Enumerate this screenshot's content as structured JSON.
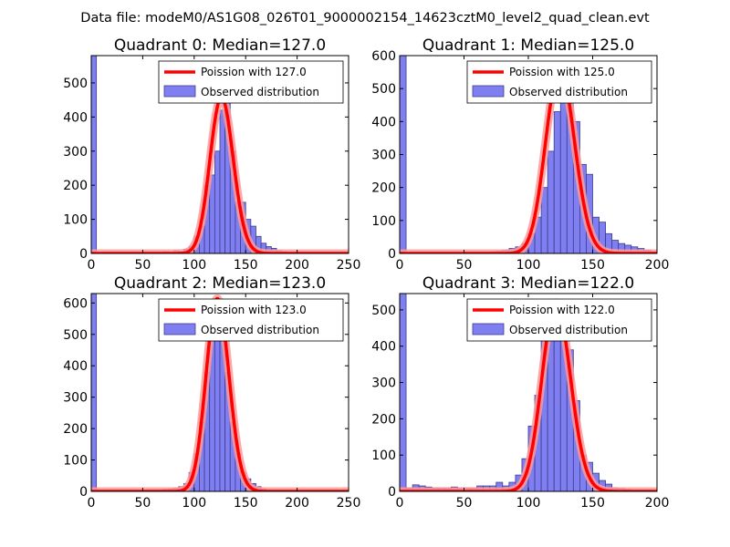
{
  "suptitle": "Data file: modeM0/AS1G08_026T01_9000002154_14623cztM0_level2_quad_clean.evt",
  "colors": {
    "bar_fill": "#7f7ff2",
    "bar_edge": "#3c3c8c",
    "poisson_line": "#ff0000",
    "poisson_halo": "#ff9a9a"
  },
  "chart_data": [
    {
      "type": "bar",
      "title": "Quadrant 0: Median=127.0",
      "median": 127.0,
      "bin_width": 5,
      "xlim": [
        0,
        250
      ],
      "ylim": [
        0,
        580
      ],
      "xticks": [
        "0",
        "50",
        "100",
        "150",
        "200",
        "250"
      ],
      "yticks": [
        "0",
        "100",
        "200",
        "300",
        "400",
        "500"
      ],
      "legend": [
        "Poission with 127.0",
        "Observed distribution"
      ],
      "legend_position": "top-right",
      "bins": [
        {
          "x": 0,
          "y": 580
        },
        {
          "x": 70,
          "y": 5
        },
        {
          "x": 75,
          "y": 3
        },
        {
          "x": 80,
          "y": 8
        },
        {
          "x": 85,
          "y": 6
        },
        {
          "x": 90,
          "y": 12
        },
        {
          "x": 95,
          "y": 20
        },
        {
          "x": 100,
          "y": 50
        },
        {
          "x": 105,
          "y": 80
        },
        {
          "x": 110,
          "y": 200
        },
        {
          "x": 115,
          "y": 230
        },
        {
          "x": 120,
          "y": 300
        },
        {
          "x": 125,
          "y": 420
        },
        {
          "x": 130,
          "y": 440
        },
        {
          "x": 135,
          "y": 300
        },
        {
          "x": 140,
          "y": 150
        },
        {
          "x": 145,
          "y": 150
        },
        {
          "x": 150,
          "y": 100
        },
        {
          "x": 155,
          "y": 80
        },
        {
          "x": 160,
          "y": 50
        },
        {
          "x": 165,
          "y": 30
        },
        {
          "x": 170,
          "y": 20
        },
        {
          "x": 175,
          "y": 15
        },
        {
          "x": 180,
          "y": 8
        },
        {
          "x": 185,
          "y": 5
        },
        {
          "x": 190,
          "y": 3
        }
      ]
    },
    {
      "type": "bar",
      "title": "Quadrant 1: Median=125.0",
      "median": 125.0,
      "bin_width": 5,
      "xlim": [
        0,
        200
      ],
      "ylim": [
        0,
        600
      ],
      "xticks": [
        "0",
        "50",
        "100",
        "150",
        "200"
      ],
      "yticks": [
        "0",
        "100",
        "200",
        "300",
        "400",
        "500",
        "600"
      ],
      "legend": [
        "Poission with 125.0",
        "Observed distribution"
      ],
      "legend_position": "top-right",
      "bins": [
        {
          "x": 0,
          "y": 600
        },
        {
          "x": 70,
          "y": 5
        },
        {
          "x": 75,
          "y": 7
        },
        {
          "x": 80,
          "y": 10
        },
        {
          "x": 85,
          "y": 15
        },
        {
          "x": 90,
          "y": 20
        },
        {
          "x": 95,
          "y": 30
        },
        {
          "x": 100,
          "y": 60
        },
        {
          "x": 105,
          "y": 110
        },
        {
          "x": 110,
          "y": 200
        },
        {
          "x": 115,
          "y": 310
        },
        {
          "x": 120,
          "y": 430
        },
        {
          "x": 125,
          "y": 520
        },
        {
          "x": 130,
          "y": 540
        },
        {
          "x": 135,
          "y": 400
        },
        {
          "x": 140,
          "y": 270
        },
        {
          "x": 145,
          "y": 240
        },
        {
          "x": 150,
          "y": 110
        },
        {
          "x": 155,
          "y": 95
        },
        {
          "x": 160,
          "y": 60
        },
        {
          "x": 165,
          "y": 40
        },
        {
          "x": 170,
          "y": 30
        },
        {
          "x": 175,
          "y": 25
        },
        {
          "x": 180,
          "y": 20
        },
        {
          "x": 185,
          "y": 15
        },
        {
          "x": 190,
          "y": 10
        },
        {
          "x": 195,
          "y": 5
        }
      ]
    },
    {
      "type": "bar",
      "title": "Quadrant 2: Median=123.0",
      "median": 123.0,
      "bin_width": 5,
      "xlim": [
        0,
        250
      ],
      "ylim": [
        0,
        630
      ],
      "xticks": [
        "0",
        "50",
        "100",
        "150",
        "200",
        "250"
      ],
      "yticks": [
        "0",
        "100",
        "200",
        "300",
        "400",
        "500",
        "600"
      ],
      "legend": [
        "Poission with 123.0",
        "Observed distribution"
      ],
      "legend_position": "top-right",
      "bins": [
        {
          "x": 0,
          "y": 630
        },
        {
          "x": 65,
          "y": 4
        },
        {
          "x": 70,
          "y": 6
        },
        {
          "x": 75,
          "y": 8
        },
        {
          "x": 80,
          "y": 10
        },
        {
          "x": 85,
          "y": 15
        },
        {
          "x": 90,
          "y": 25
        },
        {
          "x": 95,
          "y": 60
        },
        {
          "x": 100,
          "y": 120
        },
        {
          "x": 105,
          "y": 220
        },
        {
          "x": 110,
          "y": 380
        },
        {
          "x": 115,
          "y": 550
        },
        {
          "x": 120,
          "y": 590
        },
        {
          "x": 125,
          "y": 520
        },
        {
          "x": 130,
          "y": 380
        },
        {
          "x": 135,
          "y": 220
        },
        {
          "x": 140,
          "y": 120
        },
        {
          "x": 145,
          "y": 60
        },
        {
          "x": 150,
          "y": 40
        },
        {
          "x": 155,
          "y": 25
        },
        {
          "x": 160,
          "y": 15
        },
        {
          "x": 165,
          "y": 8
        },
        {
          "x": 170,
          "y": 4
        }
      ]
    },
    {
      "type": "bar",
      "title": "Quadrant 3: Median=122.0",
      "median": 122.0,
      "bin_width": 5,
      "xlim": [
        0,
        200
      ],
      "ylim": [
        0,
        545
      ],
      "xticks": [
        "0",
        "50",
        "100",
        "150",
        "200"
      ],
      "yticks": [
        "0",
        "100",
        "200",
        "300",
        "400",
        "500"
      ],
      "legend": [
        "Poission with 122.0",
        "Observed distribution"
      ],
      "legend_position": "top-right",
      "bins": [
        {
          "x": 0,
          "y": 545
        },
        {
          "x": 5,
          "y": 10
        },
        {
          "x": 10,
          "y": 18
        },
        {
          "x": 15,
          "y": 15
        },
        {
          "x": 20,
          "y": 12
        },
        {
          "x": 25,
          "y": 10
        },
        {
          "x": 30,
          "y": 10
        },
        {
          "x": 35,
          "y": 10
        },
        {
          "x": 40,
          "y": 12
        },
        {
          "x": 45,
          "y": 10
        },
        {
          "x": 50,
          "y": 10
        },
        {
          "x": 55,
          "y": 10
        },
        {
          "x": 60,
          "y": 15
        },
        {
          "x": 65,
          "y": 15
        },
        {
          "x": 70,
          "y": 15
        },
        {
          "x": 75,
          "y": 25
        },
        {
          "x": 80,
          "y": 15
        },
        {
          "x": 85,
          "y": 25
        },
        {
          "x": 90,
          "y": 45
        },
        {
          "x": 95,
          "y": 90
        },
        {
          "x": 100,
          "y": 180
        },
        {
          "x": 105,
          "y": 265
        },
        {
          "x": 110,
          "y": 420
        },
        {
          "x": 115,
          "y": 480
        },
        {
          "x": 120,
          "y": 500
        },
        {
          "x": 125,
          "y": 430
        },
        {
          "x": 130,
          "y": 390
        },
        {
          "x": 135,
          "y": 250
        },
        {
          "x": 140,
          "y": 100
        },
        {
          "x": 145,
          "y": 80
        },
        {
          "x": 150,
          "y": 50
        },
        {
          "x": 155,
          "y": 30
        },
        {
          "x": 160,
          "y": 20
        },
        {
          "x": 165,
          "y": 10
        },
        {
          "x": 170,
          "y": 8
        },
        {
          "x": 175,
          "y": 5
        },
        {
          "x": 180,
          "y": 3
        },
        {
          "x": 185,
          "y": 2
        }
      ]
    }
  ]
}
